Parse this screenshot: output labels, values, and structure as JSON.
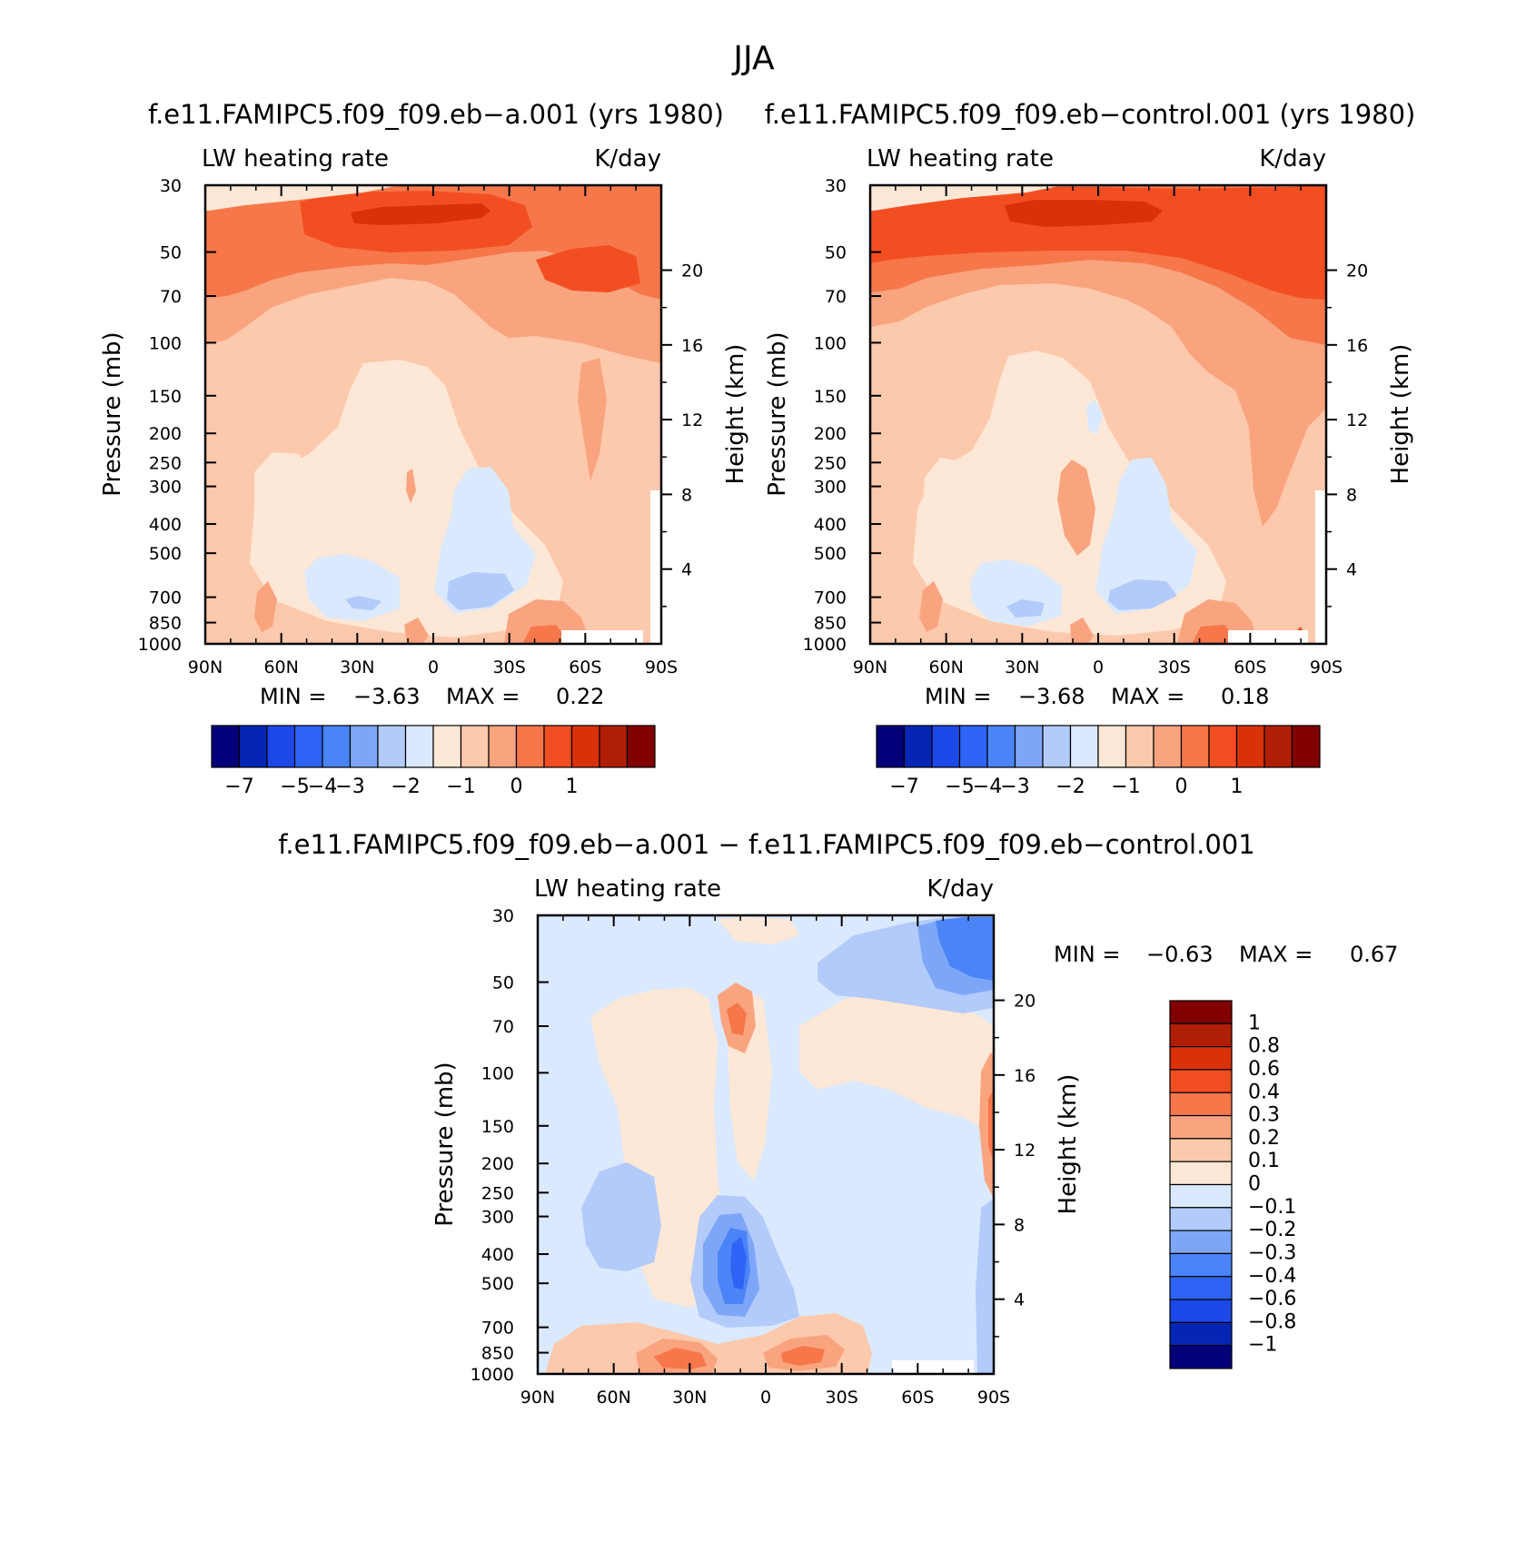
{
  "figure_title": "JJA",
  "colors": {
    "diverging_12": [
      "#04007A",
      "#0526B5",
      "#1D49EA",
      "#2E63F5",
      "#4A84F7",
      "#7EA6F8",
      "#B3CBFB",
      "#DAE9FD",
      "#FDE7D6",
      "#FCC9AC",
      "#F9A47F",
      "#F6774A",
      "#F34E22",
      "#D93208",
      "#B01F05",
      "#820000"
    ],
    "white_patch": "#FFFFFF"
  },
  "chart_data": [
    {
      "type": "contour",
      "id": "panel_a",
      "title": "f.e11.FAMIPC5.f09_f09.eb−a.001 (yrs 1980)",
      "left_label": "LW heating rate",
      "right_label": "K/day",
      "ylabel": "Pressure (mb)",
      "ylabel_right": "Height (km)",
      "x_ticks": [
        "90N",
        "60N",
        "30N",
        "0",
        "30S",
        "60S",
        "90S"
      ],
      "y_ticks": [
        "30",
        "50",
        "70",
        "100",
        "150",
        "200",
        "250",
        "300",
        "400",
        "500",
        "700",
        "850",
        "1000"
      ],
      "y_ticks_right": [
        "20",
        "16",
        "12",
        "8",
        "4"
      ],
      "min_label": "MIN =",
      "min_value": "−3.63",
      "max_label": "MAX =",
      "max_value": "0.22",
      "colorbar_labels": [
        "−7",
        "−5",
        "−4",
        "−3",
        "−2",
        "−1",
        "0",
        "1"
      ]
    },
    {
      "type": "contour",
      "id": "panel_b",
      "title": "f.e11.FAMIPC5.f09_f09.eb−control.001 (yrs 1980)",
      "left_label": "LW heating rate",
      "right_label": "K/day",
      "ylabel": "Pressure (mb)",
      "ylabel_right": "Height (km)",
      "x_ticks": [
        "90N",
        "60N",
        "30N",
        "0",
        "30S",
        "60S",
        "90S"
      ],
      "y_ticks": [
        "30",
        "50",
        "70",
        "100",
        "150",
        "200",
        "250",
        "300",
        "400",
        "500",
        "700",
        "850",
        "1000"
      ],
      "y_ticks_right": [
        "20",
        "16",
        "12",
        "8",
        "4"
      ],
      "min_label": "MIN =",
      "min_value": "−3.68",
      "max_label": "MAX =",
      "max_value": "0.18",
      "colorbar_labels": [
        "−7",
        "−5",
        "−4",
        "−3",
        "−2",
        "−1",
        "0",
        "1"
      ]
    },
    {
      "type": "contour",
      "id": "panel_diff",
      "title": "f.e11.FAMIPC5.f09_f09.eb−a.001 − f.e11.FAMIPC5.f09_f09.eb−control.001",
      "left_label": "LW heating rate",
      "right_label": "K/day",
      "ylabel": "Pressure (mb)",
      "ylabel_right": "Height (km)",
      "x_ticks": [
        "90N",
        "60N",
        "30N",
        "0",
        "30S",
        "60S",
        "90S"
      ],
      "y_ticks": [
        "30",
        "50",
        "70",
        "100",
        "150",
        "200",
        "250",
        "300",
        "400",
        "500",
        "700",
        "850",
        "1000"
      ],
      "y_ticks_right": [
        "20",
        "16",
        "12",
        "8",
        "4"
      ],
      "min_label": "MIN =",
      "min_value": "−0.63",
      "max_label": "MAX =",
      "max_value": "0.67",
      "colorbar_labels": [
        "1",
        "0.8",
        "0.6",
        "0.4",
        "0.3",
        "0.2",
        "0.1",
        "0",
        "−0.1",
        "−0.2",
        "−0.3",
        "−0.4",
        "−0.6",
        "−0.8",
        "−1"
      ]
    }
  ]
}
